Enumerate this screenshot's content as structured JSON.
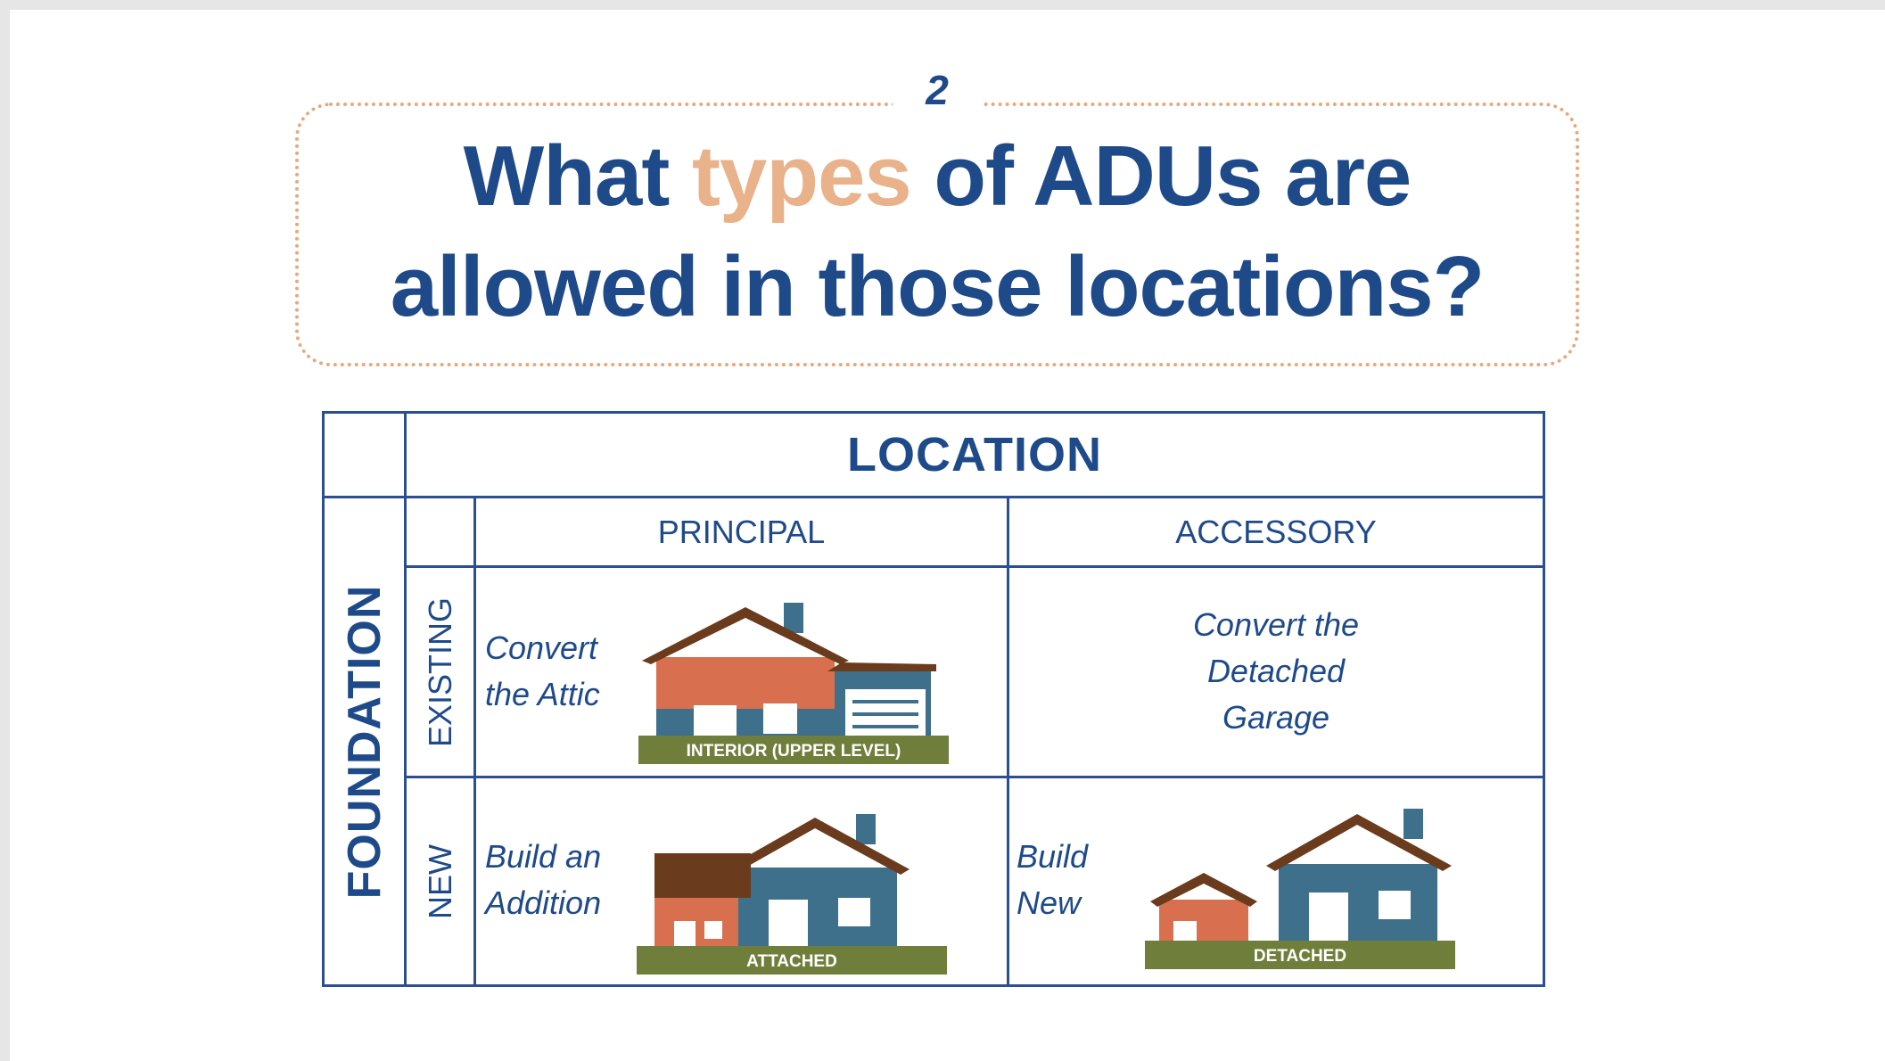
{
  "slide": {
    "page_number": "2",
    "title_line1_before": "What ",
    "title_line1_accent": "types",
    "title_line1_after": " of ADUs are",
    "title_line2": "allowed in those locations?"
  },
  "table": {
    "location_header": "LOCATION",
    "foundation_header": "FOUNDATION",
    "columns": [
      "PRINCIPAL",
      "ACCESSORY"
    ],
    "rows": [
      "EXISTING",
      "NEW"
    ],
    "cells": {
      "existing_principal": {
        "text_line1": "Convert",
        "text_line2": "the Attic",
        "image_label": "INTERIOR (UPPER LEVEL)"
      },
      "existing_accessory": {
        "text_line1": "Convert the",
        "text_line2": "Detached",
        "text_line3": "Garage"
      },
      "new_principal": {
        "text_line1": "Build an",
        "text_line2": "Addition",
        "image_label": "ATTACHED"
      },
      "new_accessory": {
        "text_line1": "Build",
        "text_line2": "New",
        "image_label": "DETACHED"
      }
    }
  },
  "colors": {
    "navy": "#1e4a8a",
    "accent_peach": "#e9b28a",
    "house_blue": "#3e6f8b",
    "house_orange": "#d8704f",
    "roof_brown": "#6b3b1e",
    "ground_green": "#6f7f3b"
  }
}
